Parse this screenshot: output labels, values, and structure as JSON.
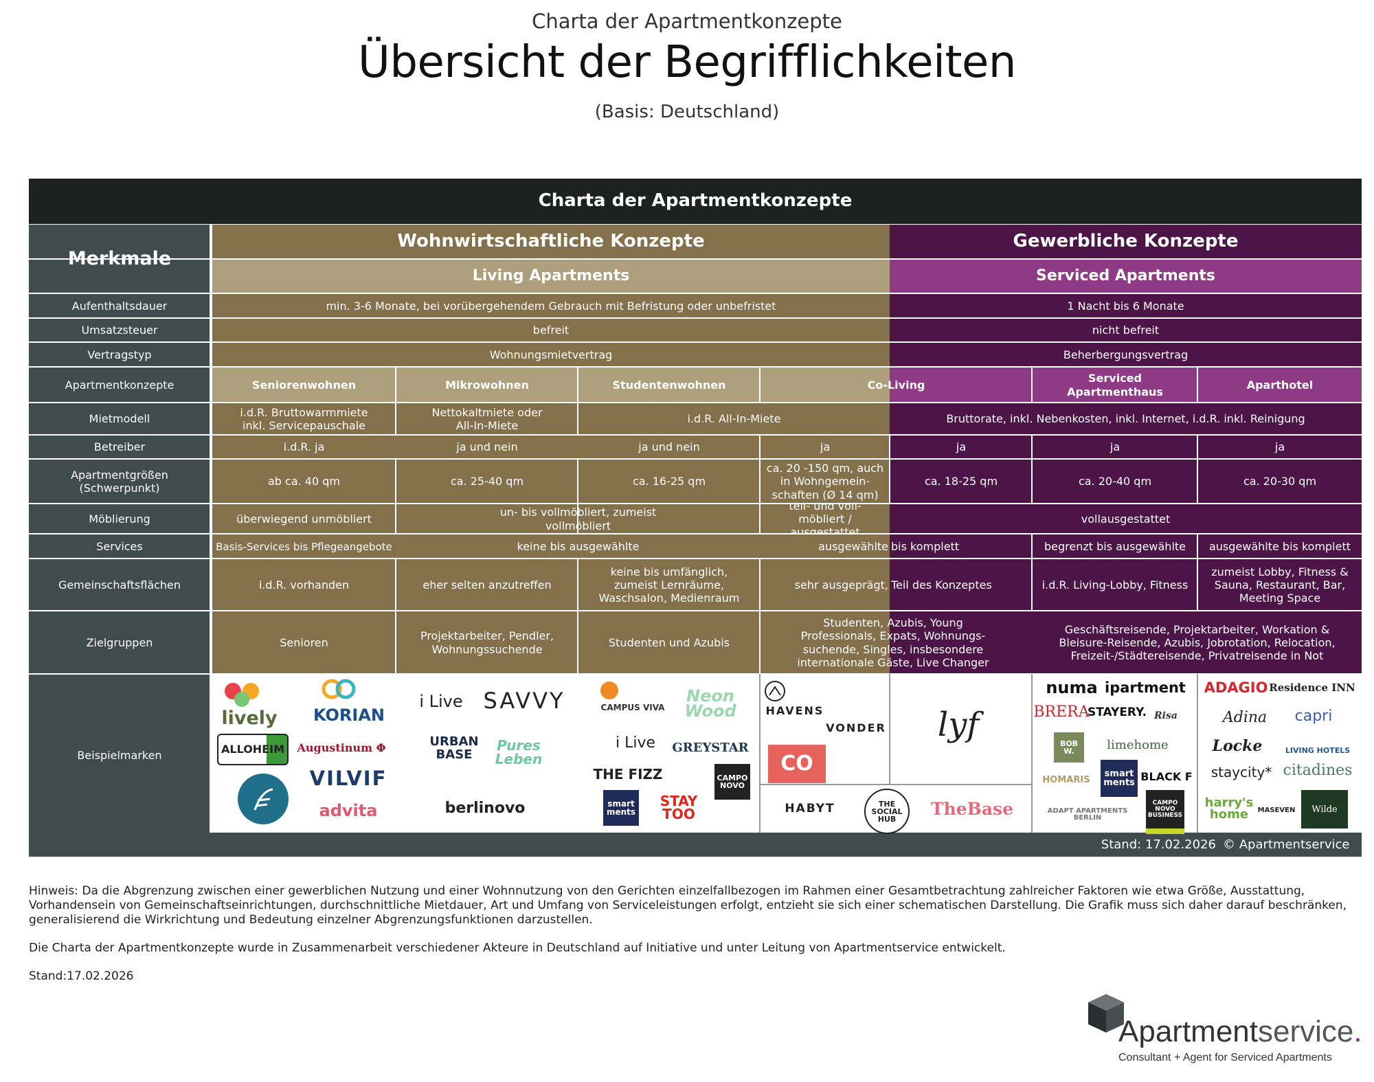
{
  "header": {
    "subtitle": "Charta der Apartmentkonzepte",
    "title": "Übersicht der Begrifflichkeiten",
    "basis": "(Basis: Deutschland)"
  },
  "table": {
    "title": "Charta der Apartmentkonzepte",
    "merkmale": "Merkmale",
    "group_residential": "Wohnwirtschaftliche Konzepte",
    "group_commercial": "Gewerbliche Konzepte",
    "sub_residential": "Living Apartments",
    "sub_commercial": "Serviced Apartments",
    "rows": {
      "aufenthalt": {
        "label": "Aufenthaltsdauer",
        "res": "min. 3-6 Monate, bei vorübergehendem Gebrauch mit Befristung oder unbefristet",
        "com": "1 Nacht bis 6 Monate"
      },
      "ust": {
        "label": "Umsatzsteuer",
        "res": "befreit",
        "com": "nicht befreit"
      },
      "vertrag": {
        "label": "Vertragstyp",
        "res": "Wohnungsmietvertrag",
        "com": "Beherbergungsvertrag"
      },
      "konzepte": {
        "label": "Apartmentkonzepte",
        "senioren": "Seniorenwohnen",
        "mikro": "Mikrowohnen",
        "studenten": "Studentenwohnen",
        "coliving": "Co-Living",
        "sah": "Serviced Apartmenthaus",
        "aparthotel": "Aparthotel"
      },
      "mietmodell": {
        "label": "Mietmodell",
        "senioren": "i.d.R. Bruttowarmmiete inkl. Servicepauschale",
        "mikro": "Nettokaltmiete oder All-In-Miete",
        "studco": "i.d.R. All-In-Miete",
        "com": "Bruttorate, inkl. Nebenkosten, inkl. Internet, i.d.R. inkl. Reinigung"
      },
      "betreiber": {
        "label": "Betreiber",
        "senioren": "i.d.R. ja",
        "mikro": "ja und nein",
        "studenten": "ja und nein",
        "coliving_res": "ja",
        "coliving_com": "ja",
        "sah": "ja",
        "aparthotel": "ja"
      },
      "groessen": {
        "label_1": "Apartmentgrößen",
        "label_2": "(Schwerpunkt)",
        "senioren": "ab ca. 40 qm",
        "mikro": "ca. 25-40 qm",
        "studenten": "ca. 16-25 qm",
        "coliving_res": "ca. 20 -150 qm, auch in Wohngemein-schaften (Ø 14 qm)",
        "coliving_com": "ca. 18-25 qm",
        "sah": "ca. 20-40 qm",
        "aparthotel": "ca. 20-30 qm"
      },
      "moebl": {
        "label": "Möblierung",
        "senioren": "überwiegend unmöbliert",
        "mikstud": "un- bis vollmöbliert, zumeist vollmöbliert",
        "coliving": "teil- und voll-möbliert / ausgestattet",
        "com": "vollausgestattet"
      },
      "services": {
        "label": "Services",
        "senioren": "Basis-Services bis Pflegeangebote",
        "mikstud": "keine bis ausgewählte",
        "coliving_a": "ausgewählte",
        "coliving_b": "bis komplett",
        "sah": "begrenzt bis ausgewählte",
        "aparthotel": "ausgewählte bis komplett"
      },
      "gemein": {
        "label": "Gemeinschaftsflächen",
        "senioren": "i.d.R. vorhanden",
        "mikro": "eher selten anzutreffen",
        "studenten": "keine bis umfänglich, zumeist Lernräume, Waschsalon, Medienraum",
        "coliving_a": "sehr ausgeprägt,",
        "coliving_b": "Teil des Konzeptes",
        "sah": "i.d.R. Living-Lobby, Fitness",
        "aparthotel": "zumeist Lobby, Fitness & Sauna, Restaurant, Bar, Meeting Space"
      },
      "ziel": {
        "label": "Zielgruppen",
        "senioren": "Senioren",
        "mikro": "Projektarbeiter, Pendler, Wohnungssuchende",
        "studenten": "Studenten und Azubis",
        "coliving": "Studenten, Azubis, Young Professionals, Expats, Wohnungs-suchende, Singles, insbesondere internationale Gäste, Live Changer",
        "com": "Geschäftsreisende, Projektarbeiter, Workation & Bleisure-Reisende, Azubis, Jobrotation, Relocation, Freizeit-/Städtereisende, Privatreisende in Not"
      },
      "marken": {
        "label": "Beispielmarken"
      }
    },
    "stand": "Stand: 17.02.2026",
    "copyright": "© Apartmentservice"
  },
  "logos": {
    "lively": "lively",
    "korian": "KORIAN",
    "alloheim": "ALLOHEIM",
    "augustinum": "Augustinum Φ",
    "vilvif": "VILVIF",
    "advita": "advita",
    "ilive1": "i Live",
    "savvy": "SAVVY",
    "urbanbase": "URBAN BASE",
    "pures": "Pures Leben",
    "berlinovo": "berlinovo",
    "campusviva": "CAMPUS VIVA",
    "neonwood": "Neon Wood",
    "ilive2": "i Live",
    "greystar": "GREYSTAR",
    "fizz": "THE FIZZ",
    "campo1": "CAMPO NOVO",
    "smart1": "smart ments",
    "staytoo": "STAY TOO",
    "havens": "HAVENS",
    "vonder": "VONDER",
    "houseofco": "CO",
    "lyf": "lyf",
    "habyt": "HABYT",
    "socialhub": "THE SOCIAL HUB",
    "thebase": "TheBase",
    "numa": "numa",
    "ipartment": "ipartment",
    "brera": "BRERA",
    "stayery": "STAYERY.",
    "risa": "Risa",
    "bobw": "BOB W.",
    "limehome": "limehome",
    "smart2": "smart ments",
    "homaris": "HOMARIS",
    "black": "BLACK F",
    "adapt": "ADAPT APARTMENTS BERLIN",
    "campo2": "CAMPO NOVO BUSINESS",
    "adagio": "ADAGIO",
    "residenceinn": "Residence INN",
    "adina": "Adina",
    "capri": "capri",
    "locke": "Locke",
    "livinghotels": "LIVING HOTELS",
    "staycity": "staycity*",
    "citadines": "citadines",
    "harrys": "harry's home",
    "maseven": "MASEVEN",
    "wilde": "Wilde"
  },
  "notes": {
    "hinweis": "Hinweis: Da die Abgrenzung zwischen einer gewerblichen Nutzung und einer Wohnnutzung von den Gerichten einzelfallbezogen im Rahmen einer Gesamtbetrachtung zahlreicher Faktoren wie etwa Größe, Ausstattung, Vorhandensein von Gemeinschaftseinrichtungen, durchschnittliche Mietdauer, Art und Umfang von Serviceleistungen erfolgt, entzieht sie sich einer schematischen Darstellung. Die Grafik muss sich daher darauf beschränken, generalisierend die Wirkrichtung und Bedeutung einzelner Abgrenzungsfunktionen darzustellen.",
    "initiative": "Die Charta der Apartmentkonzepte wurde in Zusammenarbeit verschiedener Akteure in Deutschland auf Initiative und unter Leitung von Apartmentservice entwickelt.",
    "stand": "Stand:17.02.2026"
  },
  "brand": {
    "name_a": "Apartment",
    "name_b": "service",
    "tagline": "Consultant + Agent for Serviced Apartments"
  },
  "colors": {
    "dark": "#1d2220",
    "slate": "#3f4b4c",
    "residential": "#84704b",
    "residential_light": "#ae9f7c",
    "commercial": "#4d1447",
    "commercial_light": "#8e3a84",
    "accent_purple": "#8b1a9a"
  }
}
